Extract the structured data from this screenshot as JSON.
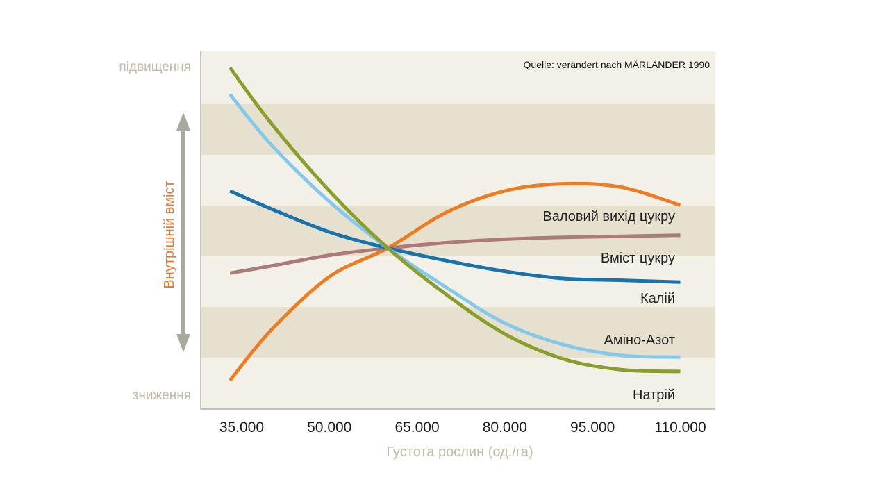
{
  "chart_data": {
    "type": "line",
    "source": "Quelle: verändert nach MÄRLÄNDER 1990",
    "xlabel": "Густота рослин (од./га)",
    "ylabel": "Внутрішній вміст",
    "y_top_label": "підвищення",
    "y_bottom_label": "зниження",
    "x_ticks": [
      "35.000",
      "50.000",
      "65.000",
      "80.000",
      "95.000",
      "110.000"
    ],
    "xlim": [
      28000,
      116000
    ],
    "ylim": [
      0,
      100
    ],
    "grid": false,
    "colors": {
      "band": "#e6e1ce",
      "background": "#f3f0e8",
      "axis_arrow": "#a9a89c"
    },
    "series": [
      {
        "name": "Валовий вихід цукру",
        "color": "#ec7d23",
        "points": [
          [
            33000,
            8
          ],
          [
            40000,
            22
          ],
          [
            50000,
            37
          ],
          [
            60000,
            45
          ],
          [
            70000,
            55
          ],
          [
            80000,
            61
          ],
          [
            90000,
            63
          ],
          [
            100000,
            62
          ],
          [
            110000,
            57
          ]
        ]
      },
      {
        "name": "Вміст цукру",
        "color": "#ad7a78",
        "points": [
          [
            33000,
            38
          ],
          [
            40000,
            40
          ],
          [
            50000,
            43
          ],
          [
            60000,
            45
          ],
          [
            70000,
            46.5
          ],
          [
            80000,
            47.5
          ],
          [
            90000,
            48
          ],
          [
            100000,
            48.3
          ],
          [
            110000,
            48.6
          ]
        ]
      },
      {
        "name": "Калій",
        "color": "#1a72ac",
        "points": [
          [
            33000,
            61
          ],
          [
            40000,
            56
          ],
          [
            50000,
            49.5
          ],
          [
            60000,
            45
          ],
          [
            70000,
            41.5
          ],
          [
            80000,
            38.5
          ],
          [
            90000,
            36.5
          ],
          [
            100000,
            36
          ],
          [
            110000,
            35.5
          ]
        ]
      },
      {
        "name": "Аміно-Азот",
        "color": "#85c9ea",
        "points": [
          [
            33000,
            88
          ],
          [
            40000,
            74
          ],
          [
            50000,
            58
          ],
          [
            60000,
            45
          ],
          [
            70000,
            34
          ],
          [
            80000,
            24
          ],
          [
            90000,
            18
          ],
          [
            100000,
            15
          ],
          [
            110000,
            14.5
          ]
        ]
      },
      {
        "name": "Натрій",
        "color": "#8a9e2c",
        "points": [
          [
            33000,
            95.5
          ],
          [
            40000,
            80
          ],
          [
            50000,
            61
          ],
          [
            60000,
            45
          ],
          [
            70000,
            32
          ],
          [
            80000,
            21
          ],
          [
            90000,
            14
          ],
          [
            100000,
            11
          ],
          [
            110000,
            10.5
          ]
        ]
      }
    ]
  }
}
